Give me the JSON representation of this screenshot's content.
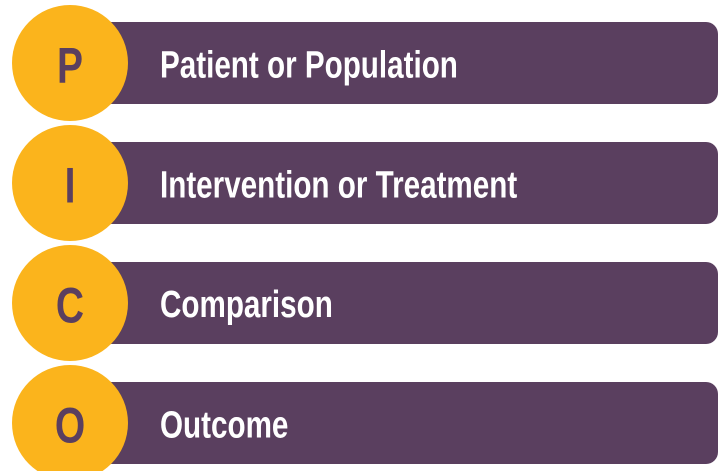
{
  "items": [
    {
      "letter": "P",
      "label": "Patient or Population"
    },
    {
      "letter": "I",
      "label": "Intervention or Treatment"
    },
    {
      "letter": "C",
      "label": "Comparison"
    },
    {
      "letter": "O",
      "label": "Outcome"
    }
  ]
}
